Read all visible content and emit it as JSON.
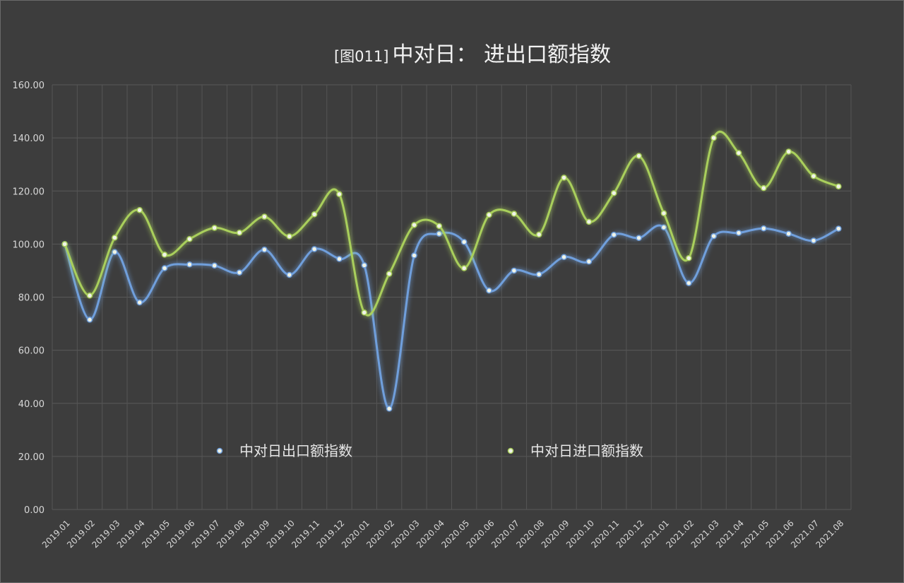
{
  "chart_data": {
    "type": "line",
    "title_prefix": "[图011]",
    "title": "中对日： 进出口额指数",
    "xlabel": "",
    "ylabel": "",
    "ylim": [
      0,
      160
    ],
    "ytick_labels": [
      "0.00",
      "20.00",
      "40.00",
      "60.00",
      "80.00",
      "100.00",
      "120.00",
      "140.00",
      "160.00"
    ],
    "grid": true,
    "legend_position": "inside-lower-center",
    "categories": [
      "2019.01",
      "2019.02",
      "2019.03",
      "2019.04",
      "2019.05",
      "2019.06",
      "2019.07",
      "2019.08",
      "2019.09",
      "2019.10",
      "2019.11",
      "2019.12",
      "2020.01",
      "2020.02",
      "2020.03",
      "2020.04",
      "2020.05",
      "2020.06",
      "2020.07",
      "2020.08",
      "2020.09",
      "2020.10",
      "2020.11",
      "2020.12",
      "2021.01",
      "2021.02",
      "2021.03",
      "2021.04",
      "2021.05",
      "2021.06",
      "2021.07",
      "2021.08"
    ],
    "series": [
      {
        "name": "中对日出口额指数",
        "color": "#6f9fdc",
        "values": [
          100.0,
          71.5,
          97.0,
          78.0,
          90.9,
          92.3,
          91.9,
          89.3,
          97.9,
          88.4,
          98.1,
          94.4,
          92.0,
          38.0,
          95.7,
          103.9,
          100.8,
          82.5,
          90.0,
          88.6,
          95.1,
          93.4,
          103.5,
          102.3,
          106.3,
          85.3,
          103.0,
          104.2,
          105.9,
          103.9,
          101.3,
          105.8
        ]
      },
      {
        "name": "中对日进口额指数",
        "color": "#a9cf5b",
        "values": [
          100.0,
          80.6,
          102.4,
          112.8,
          96.0,
          101.9,
          106.1,
          104.3,
          110.3,
          102.9,
          111.2,
          118.8,
          74.2,
          88.8,
          107.2,
          106.8,
          90.9,
          111.0,
          111.4,
          103.6,
          125.0,
          108.4,
          119.2,
          133.2,
          111.6,
          94.7,
          140.0,
          134.3,
          121.1,
          134.8,
          125.6,
          121.7
        ]
      }
    ]
  }
}
